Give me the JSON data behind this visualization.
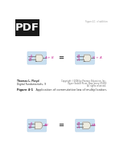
{
  "background_color": "#ffffff",
  "pdf_badge_color": "#1a1a1a",
  "pdf_text_color": "#ffffff",
  "gate_box_color": "#c8dff0",
  "gate_body_color": "#eeece0",
  "wire_color": "#666666",
  "label_color": "#cc3399",
  "top_small_text": "Figure 4-1  of addition",
  "top_gate1_inputs": [
    "A",
    "B"
  ],
  "top_gate1_output": "A + B",
  "top_gate2_inputs": [
    "B",
    "A"
  ],
  "top_gate2_output": "B + A",
  "fig_label": "Figure 4-1",
  "fig_caption": "    Application of commutative law of multiplication.",
  "author_line1": "Thomas L. Floyd",
  "author_line2": "Digital Fundamentals, 9",
  "right_text1": "Copyright ©2006 by Pearson Education, Inc.",
  "right_text2": "Upper Saddle River, New Jersey 07458",
  "right_text3": "All rights reserved.",
  "bot_gate1_inputs": [
    "A",
    "B"
  ],
  "bot_gate1_output": "AB",
  "bot_gate2_inputs": [
    "B",
    "A"
  ],
  "bot_gate2_output": "BA",
  "equal_sign": "="
}
